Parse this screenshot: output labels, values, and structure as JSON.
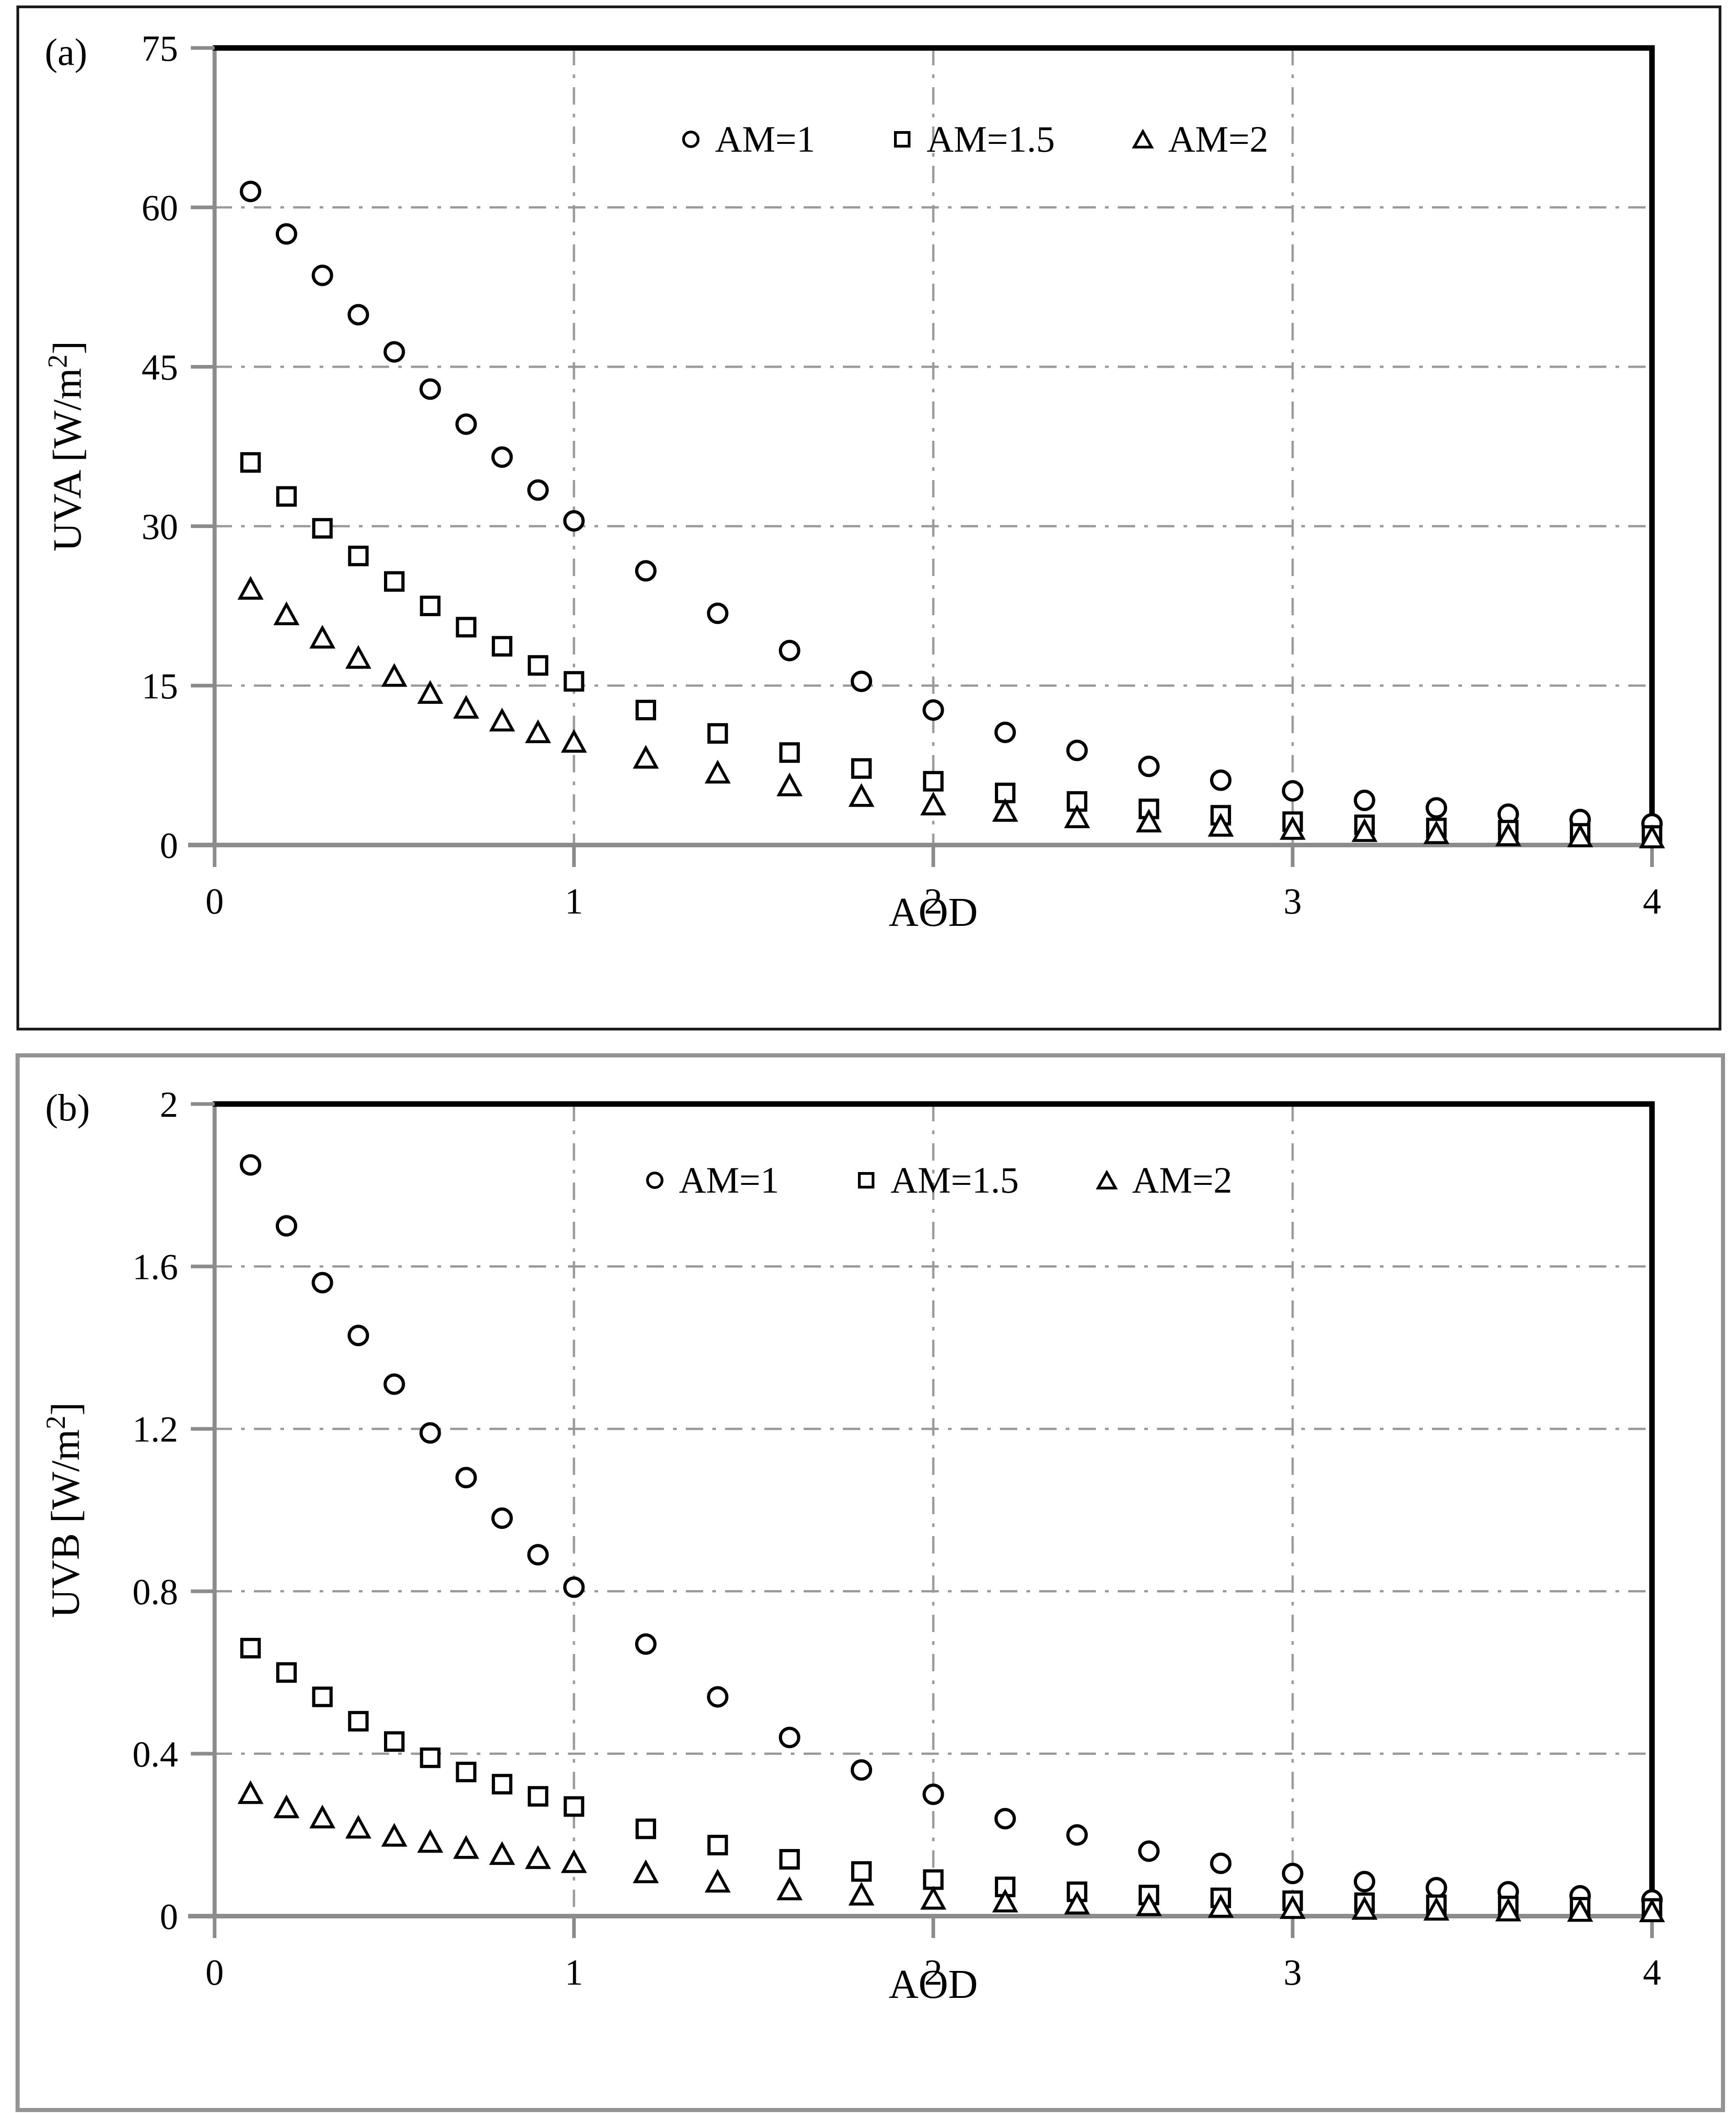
{
  "figure": {
    "description": "Two stacked scatter plots of UV irradiance versus aerosol optical depth",
    "marker_color": "#000000",
    "grid_color": "#999999",
    "axis_gray": "#8c8c8c",
    "frame_black": "#000000"
  },
  "chart_data": [
    {
      "panel": "a",
      "panel_label": "(a)",
      "type": "scatter",
      "xlabel": "AOD",
      "ylabel": {
        "prefix": "UVA [W/m",
        "sup": "2",
        "suffix": "]"
      },
      "xlim": [
        0,
        4
      ],
      "ylim": [
        0,
        75
      ],
      "xticks": [
        0,
        1,
        2,
        3,
        4
      ],
      "yticks": [
        0,
        15,
        30,
        45,
        60,
        75
      ],
      "grid": "dash-dot gray at major ticks",
      "legend_position": "inside top center",
      "x": [
        0.1,
        0.2,
        0.3,
        0.4,
        0.5,
        0.6,
        0.7,
        0.8,
        0.9,
        1.0,
        1.2,
        1.4,
        1.6,
        1.8,
        2.0,
        2.2,
        2.4,
        2.6,
        2.8,
        3.0,
        3.2,
        3.4,
        3.6,
        3.8,
        4.0
      ],
      "series": [
        {
          "name": "AM=1",
          "marker": "circle",
          "values": [
            61.5,
            57.5,
            53.6,
            49.9,
            46.4,
            42.9,
            39.6,
            36.5,
            33.4,
            30.5,
            25.8,
            21.8,
            18.3,
            15.4,
            12.7,
            10.6,
            8.9,
            7.4,
            6.1,
            5.1,
            4.2,
            3.5,
            2.9,
            2.4,
            2.0
          ]
        },
        {
          "name": "AM=1.5",
          "marker": "square",
          "values": [
            36.0,
            32.8,
            29.8,
            27.2,
            24.8,
            22.5,
            20.5,
            18.7,
            16.9,
            15.4,
            12.7,
            10.5,
            8.7,
            7.2,
            6.0,
            4.9,
            4.1,
            3.4,
            2.8,
            2.2,
            1.9,
            1.6,
            1.4,
            1.1,
            0.9
          ]
        },
        {
          "name": "AM=2",
          "marker": "triangle",
          "values": [
            24.0,
            21.6,
            19.4,
            17.5,
            15.8,
            14.2,
            12.8,
            11.6,
            10.5,
            9.6,
            8.1,
            6.7,
            5.5,
            4.5,
            3.7,
            3.1,
            2.5,
            2.1,
            1.7,
            1.4,
            1.2,
            1.0,
            0.8,
            0.7,
            0.6
          ]
        }
      ]
    },
    {
      "panel": "b",
      "panel_label": "(b)",
      "type": "scatter",
      "xlabel": "AOD",
      "ylabel": {
        "prefix": "UVB [W/m",
        "sup": "2",
        "suffix": "]"
      },
      "xlim": [
        0,
        4
      ],
      "ylim": [
        0,
        2
      ],
      "xticks": [
        0,
        1,
        2,
        3,
        4
      ],
      "yticks": [
        0,
        0.4,
        0.8,
        1.2,
        1.6,
        2
      ],
      "grid": "dash-dot gray at major ticks",
      "legend_position": "inside top center",
      "x": [
        0.1,
        0.2,
        0.3,
        0.4,
        0.5,
        0.6,
        0.7,
        0.8,
        0.9,
        1.0,
        1.2,
        1.4,
        1.6,
        1.8,
        2.0,
        2.2,
        2.4,
        2.6,
        2.8,
        3.0,
        3.2,
        3.4,
        3.6,
        3.8,
        4.0
      ],
      "series": [
        {
          "name": "AM=1",
          "marker": "circle",
          "values": [
            1.85,
            1.7,
            1.56,
            1.43,
            1.31,
            1.19,
            1.08,
            0.98,
            0.89,
            0.81,
            0.67,
            0.54,
            0.44,
            0.36,
            0.3,
            0.24,
            0.2,
            0.16,
            0.13,
            0.105,
            0.085,
            0.07,
            0.06,
            0.05,
            0.04
          ]
        },
        {
          "name": "AM=1.5",
          "marker": "square",
          "values": [
            0.66,
            0.6,
            0.54,
            0.48,
            0.43,
            0.39,
            0.355,
            0.325,
            0.295,
            0.27,
            0.215,
            0.175,
            0.14,
            0.11,
            0.09,
            0.072,
            0.06,
            0.052,
            0.045,
            0.038,
            0.033,
            0.028,
            0.025,
            0.022,
            0.019
          ]
        },
        {
          "name": "AM=2",
          "marker": "triangle",
          "values": [
            0.3,
            0.265,
            0.24,
            0.215,
            0.195,
            0.18,
            0.165,
            0.15,
            0.14,
            0.13,
            0.105,
            0.082,
            0.063,
            0.05,
            0.04,
            0.033,
            0.028,
            0.024,
            0.02,
            0.017,
            0.015,
            0.013,
            0.011,
            0.01,
            0.009
          ]
        }
      ]
    }
  ]
}
